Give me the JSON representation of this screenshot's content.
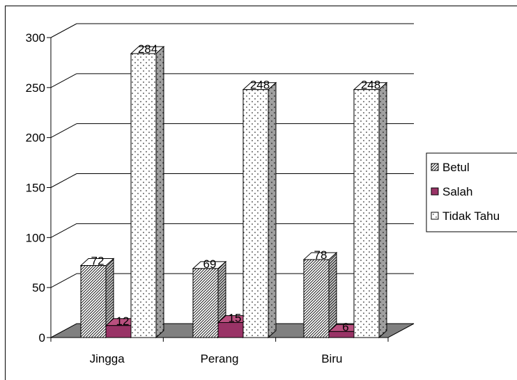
{
  "chart_data": {
    "type": "bar",
    "style": "3d-clustered-column",
    "categories": [
      "Jingga",
      "Perang",
      "Biru"
    ],
    "series": [
      {
        "name": "Betul",
        "values": [
          72,
          69,
          78
        ],
        "fill": "diagonal-hatch",
        "color": "#ffffff"
      },
      {
        "name": "Salah",
        "values": [
          12,
          15,
          6
        ],
        "fill": "solid",
        "color": "#993366"
      },
      {
        "name": "Tidak Tahu",
        "values": [
          284,
          248,
          248
        ],
        "fill": "dotted",
        "color": "#ffffff"
      }
    ],
    "ylim": [
      0,
      300
    ],
    "yticks": [
      0,
      50,
      100,
      150,
      200,
      250,
      300
    ],
    "data_labels": true,
    "grid": true,
    "legend": "right",
    "floor_color": "#808080"
  }
}
